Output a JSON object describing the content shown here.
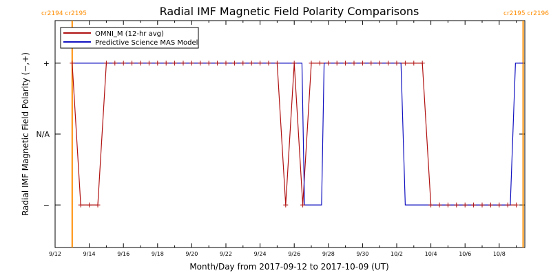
{
  "chart_data": {
    "type": "line",
    "title": "Radial IMF Magnetic Field Polarity Comparisons",
    "xlabel": "Month/Day from 2017-09-12 to 2017-10-09 (UT)",
    "ylabel": "Radial IMF Magnetic Field Polarity (−,+)",
    "x_ticks": [
      {
        "day": 0,
        "label": "9/12"
      },
      {
        "day": 2,
        "label": "9/14"
      },
      {
        "day": 4,
        "label": "9/16"
      },
      {
        "day": 6,
        "label": "9/18"
      },
      {
        "day": 8,
        "label": "9/20"
      },
      {
        "day": 10,
        "label": "9/22"
      },
      {
        "day": 12,
        "label": "9/24"
      },
      {
        "day": 14,
        "label": "9/26"
      },
      {
        "day": 16,
        "label": "9/28"
      },
      {
        "day": 18,
        "label": "9/30"
      },
      {
        "day": 20,
        "label": "10/2"
      },
      {
        "day": 22,
        "label": "10/4"
      },
      {
        "day": 24,
        "label": "10/6"
      },
      {
        "day": 26,
        "label": "10/8"
      }
    ],
    "y_ticks": [
      {
        "value": 1,
        "label": "+"
      },
      {
        "value": 0,
        "label": "N/A"
      },
      {
        "value": -1,
        "label": "−"
      }
    ],
    "xlim": [
      0,
      27.5
    ],
    "ylim": [
      -1.6,
      1.6
    ],
    "colors": {
      "omni": "#b01010",
      "model": "#1010c0",
      "carrington": "#ff8c00"
    },
    "carrington": [
      {
        "day": 1.0,
        "label": "cr2194 cr2195",
        "side": "left"
      },
      {
        "day": 27.4,
        "label": "cr2195 cr2196",
        "side": "right"
      }
    ],
    "series": [
      {
        "name": "OMNI_M (12-hr avg)",
        "marker": "+",
        "x": [
          1.0,
          1.5,
          2.0,
          2.5,
          3.0,
          3.5,
          4.0,
          4.5,
          5.0,
          5.5,
          6.0,
          6.5,
          7.0,
          7.5,
          8.0,
          8.5,
          9.0,
          9.5,
          10.0,
          10.5,
          11.0,
          11.5,
          12.0,
          12.5,
          13.0,
          13.5,
          14.0,
          14.5,
          15.0,
          15.5,
          16.0,
          16.5,
          17.0,
          17.5,
          18.0,
          18.5,
          19.0,
          19.5,
          20.0,
          20.5,
          21.0,
          21.5,
          22.0,
          22.5,
          23.0,
          23.5,
          24.0,
          24.5,
          25.0,
          25.5,
          26.0,
          26.5,
          27.0
        ],
        "y": [
          1,
          -1,
          -1,
          -1,
          1,
          1,
          1,
          1,
          1,
          1,
          1,
          1,
          1,
          1,
          1,
          1,
          1,
          1,
          1,
          1,
          1,
          1,
          1,
          1,
          1,
          -1,
          1,
          -1,
          1,
          1,
          1,
          1,
          1,
          1,
          1,
          1,
          1,
          1,
          1,
          1,
          1,
          1,
          -1,
          -1,
          -1,
          -1,
          -1,
          -1,
          -1,
          -1,
          -1,
          -1,
          -1
        ]
      },
      {
        "name": "Predictive Science MAS Model",
        "marker": "",
        "x": [
          1.0,
          14.45,
          14.6,
          15.6,
          15.75,
          20.25,
          20.5,
          26.65,
          26.95,
          27.4
        ],
        "y": [
          1,
          1,
          -1,
          -1,
          1,
          1,
          -1,
          -1,
          1,
          1
        ]
      }
    ]
  }
}
